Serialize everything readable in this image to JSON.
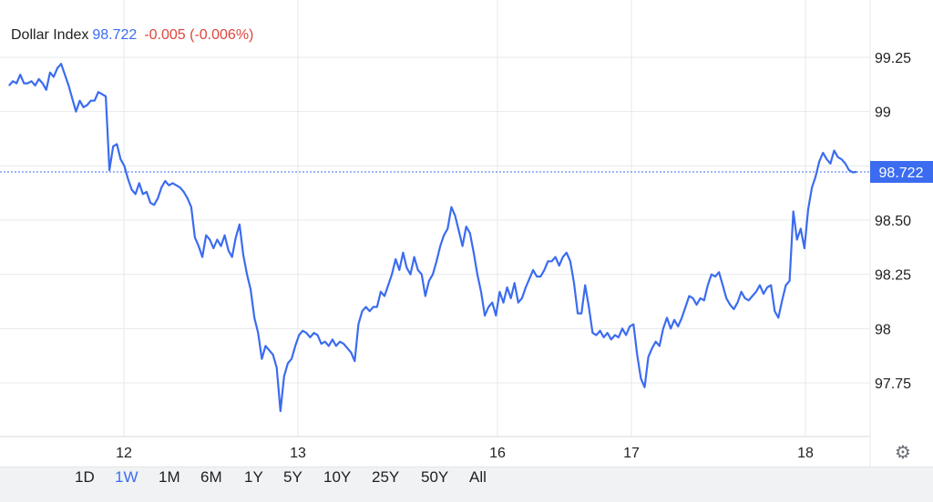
{
  "legend": {
    "name": "Dollar Index",
    "price": "98.722",
    "change": "-0.005 (-0.006%)"
  },
  "current_price_label": "98.722",
  "settings_icon": "gear-icon",
  "range_buttons": [
    {
      "label": "1D",
      "active": false
    },
    {
      "label": "1W",
      "active": true
    },
    {
      "label": "1M",
      "active": false
    },
    {
      "label": "6M",
      "active": false
    },
    {
      "label": "1Y",
      "active": false
    },
    {
      "label": "5Y",
      "active": false
    },
    {
      "label": "10Y",
      "active": false
    },
    {
      "label": "25Y",
      "active": false
    },
    {
      "label": "50Y",
      "active": false
    },
    {
      "label": "All",
      "active": false
    }
  ],
  "colors": {
    "line": "#3b6cf0",
    "price_label_bg": "#3b6cf0",
    "grid": "#e6e8eb",
    "negative_change": "#e0443c"
  },
  "chart_data": {
    "type": "line",
    "title": "Dollar Index",
    "xlabel": "",
    "ylabel": "",
    "x_tick_labels": [
      "12",
      "13",
      "16",
      "17",
      "18"
    ],
    "y_tick_labels": [
      "99.25",
      "99",
      "98.75",
      "98.50",
      "98.25",
      "98",
      "97.75"
    ],
    "y_ticks": [
      99.25,
      99,
      98.75,
      98.5,
      98.25,
      98,
      97.75
    ],
    "ylim": [
      97.5,
      99.48
    ],
    "grid": true,
    "last_price": 98.722,
    "series": [
      {
        "values": [
          99.12,
          99.14,
          99.13,
          99.17,
          99.13,
          99.13,
          99.14,
          99.12,
          99.15,
          99.13,
          99.1,
          99.18,
          99.16,
          99.2,
          99.22,
          99.17,
          99.12,
          99.06,
          99.0,
          99.05,
          99.02,
          99.03,
          99.05,
          99.05,
          99.09,
          99.08,
          99.07,
          98.73,
          98.84,
          98.85,
          98.78,
          98.75,
          98.69,
          98.64,
          98.62,
          98.67,
          98.62,
          98.63,
          98.58,
          98.57,
          98.6,
          98.65,
          98.68,
          98.66,
          98.67,
          98.66,
          98.65,
          98.63,
          98.6,
          98.56,
          98.42,
          98.38,
          98.33,
          98.43,
          98.41,
          98.37,
          98.41,
          98.38,
          98.43,
          98.36,
          98.33,
          98.42,
          98.48,
          98.34,
          98.25,
          98.18,
          98.05,
          97.98,
          97.86,
          97.92,
          97.9,
          97.88,
          97.82,
          97.62,
          97.78,
          97.84,
          97.86,
          97.92,
          97.97,
          97.99,
          97.98,
          97.96,
          97.98,
          97.97,
          97.93,
          97.94,
          97.92,
          97.95,
          97.92,
          97.94,
          97.93,
          97.91,
          97.89,
          97.85,
          98.02,
          98.08,
          98.1,
          98.08,
          98.1,
          98.1,
          98.17,
          98.15,
          98.2,
          98.25,
          98.32,
          98.27,
          98.35,
          98.28,
          98.25,
          98.33,
          98.27,
          98.25,
          98.15,
          98.22,
          98.25,
          98.31,
          98.38,
          98.43,
          98.46,
          98.56,
          98.52,
          98.45,
          98.38,
          98.47,
          98.44,
          98.35,
          98.25,
          98.17,
          98.06,
          98.1,
          98.12,
          98.06,
          98.17,
          98.12,
          98.19,
          98.14,
          98.21,
          98.12,
          98.14,
          98.19,
          98.23,
          98.27,
          98.24,
          98.24,
          98.27,
          98.31,
          98.31,
          98.33,
          98.29,
          98.33,
          98.35,
          98.31,
          98.21,
          98.07,
          98.07,
          98.2,
          98.1,
          97.98,
          97.97,
          97.99,
          97.96,
          97.98,
          97.95,
          97.97,
          97.96,
          98.0,
          97.97,
          98.01,
          98.02,
          97.88,
          97.77,
          97.73,
          97.87,
          97.91,
          97.94,
          97.92,
          98.0,
          98.05,
          98.0,
          98.04,
          98.01,
          98.05,
          98.1,
          98.15,
          98.14,
          98.11,
          98.14,
          98.13,
          98.2,
          98.25,
          98.24,
          98.26,
          98.2,
          98.14,
          98.11,
          98.09,
          98.12,
          98.17,
          98.14,
          98.13,
          98.15,
          98.17,
          98.2,
          98.16,
          98.19,
          98.2,
          98.08,
          98.05,
          98.13,
          98.2,
          98.22,
          98.54,
          98.41,
          98.46,
          98.37,
          98.55,
          98.65,
          98.7,
          98.77,
          98.81,
          98.78,
          98.76,
          98.82,
          98.79,
          98.78,
          98.76,
          98.73,
          98.72,
          98.722
        ]
      }
    ]
  }
}
